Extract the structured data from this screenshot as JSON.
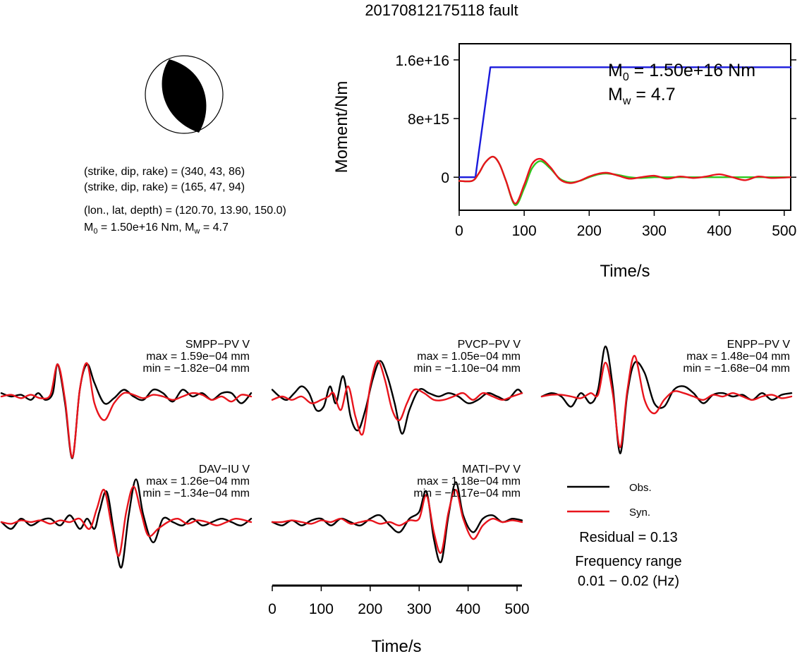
{
  "title": "20170812175118 fault",
  "mechanism": {
    "plane1": "(strike, dip, rake) = (340, 43, 86)",
    "plane2": "(strike, dip, rake) = (165, 47, 94)",
    "location": "(lon., lat, depth) = (120.70, 13.90, 150.0)",
    "moment_prefix": "M",
    "moment_sub": "0",
    "moment_suffix": " = 1.50e+16 Nm, M",
    "mw_sub": "w",
    "mw_suffix": " = 4.7"
  },
  "colors": {
    "observed": "#000000",
    "synthetic": "#e8141c",
    "moment_curve": "#1a1adc",
    "stf_green": "#2ec81e",
    "stf_olive": "#8a7030",
    "beachball": "#000000"
  },
  "legend": {
    "obs": "Obs.",
    "syn": "Syn.",
    "residual": "Residual = 0.13",
    "freq_label": "Frequency range",
    "freq_value": "0.01 − 0.02 (Hz)"
  },
  "chart_data": [
    {
      "type": "line",
      "title": "",
      "xlabel": "Time/s",
      "ylabel": "Moment/Nm",
      "xlim": [
        0,
        510
      ],
      "ylim": [
        -4500000000000000.0,
        1.82e+16
      ],
      "xticks": [
        0,
        100,
        200,
        300,
        400,
        500
      ],
      "xtick_labels": [
        "0",
        "100",
        "200",
        "300",
        "400",
        "500"
      ],
      "yticks": [
        0,
        8000000000000000.0,
        1.6e+16
      ],
      "ytick_labels": [
        "0",
        "8e+15",
        "1.6e+16"
      ],
      "annotation": {
        "m0_base": "M",
        "m0_sub": "0",
        "m0_rest": " = 1.50e+16 Nm",
        "mw_base": "M",
        "mw_sub": "w",
        "mw_rest": " = 4.7"
      },
      "series": [
        {
          "x": [
            0,
            25,
            48,
            510
          ],
          "y": [
            0,
            0,
            1.5e+16,
            1.5e+16
          ]
        },
        {
          "x": [
            0,
            20,
            30,
            40,
            52,
            62,
            72,
            86,
            100,
            112,
            125,
            140,
            155,
            170,
            185,
            200,
            215,
            228,
            245,
            262,
            280,
            300,
            320,
            340,
            360,
            380,
            400,
            420,
            440,
            460,
            480,
            510
          ],
          "y": [
            -500000000000000.0,
            -500000000000000.0,
            500000000000000.0,
            2000000000000000.0,
            2800000000000000.0,
            1800000000000000.0,
            -500000000000000.0,
            -3800000000000000.0,
            -1500000000000000.0,
            1200000000000000.0,
            2200000000000000.0,
            1200000000000000.0,
            -200000000000000.0,
            -700000000000000.0,
            -500000000000000.0,
            0.0,
            400000000000000.0,
            500000000000000.0,
            300000000000000.0,
            0.0,
            -100000000000000.0,
            0.0,
            0.0,
            0.0,
            0.0,
            0.0,
            0.0,
            0.0,
            0.0,
            0.0,
            0.0,
            0.0
          ]
        },
        {
          "x": [
            0,
            20,
            30,
            40,
            52,
            62,
            72,
            86,
            100,
            112,
            125,
            140,
            155,
            170,
            185,
            200,
            215,
            228,
            245,
            262,
            280,
            300,
            320,
            340,
            360,
            380,
            400,
            420,
            440,
            460,
            480,
            510
          ],
          "y": [
            -500000000000000.0,
            -500000000000000.0,
            500000000000000.0,
            2000000000000000.0,
            2800000000000000.0,
            1800000000000000.0,
            -500000000000000.0,
            -3600000000000000.0,
            -1000000000000000.0,
            1800000000000000.0,
            2500000000000000.0,
            1400000000000000.0,
            -300000000000000.0,
            -800000000000000.0,
            -500000000000000.0,
            100000000000000.0,
            500000000000000.0,
            600000000000000.0,
            200000000000000.0,
            -200000000000000.0,
            0.0,
            200000000000000.0,
            -200000000000000.0,
            100000000000000.0,
            -100000000000000.0,
            100000000000000.0,
            400000000000000.0,
            0.0,
            -400000000000000.0,
            100000000000000.0,
            -100000000000000.0,
            0.0
          ]
        }
      ]
    },
    {
      "type": "line",
      "xlabel": "Time/s",
      "xlim": [
        0,
        510
      ],
      "xticks": [
        0,
        100,
        200,
        300,
        400,
        500
      ],
      "xtick_labels": [
        "0",
        "100",
        "200",
        "300",
        "400",
        "500"
      ],
      "stations": [
        {
          "name": "SMPP−PV V",
          "max": "max = 1.59e−04 mm",
          "min": "min = −1.82e−04 mm",
          "obs": {
            "x": [
              0,
              20,
              40,
              60,
              75,
              90,
              105,
              115,
              130,
              145,
              160,
              175,
              190,
              210,
              230,
              250,
              270,
              290,
              310,
              330,
              350,
              370,
              390,
              410,
              430,
              450,
              470,
              490,
              510
            ],
            "y": [
              0.1,
              0,
              0.05,
              -0.1,
              0.1,
              -0.1,
              0.1,
              0.95,
              -0.2,
              -1.82,
              0.2,
              0.95,
              0.4,
              -0.2,
              -0.05,
              0.2,
              0.0,
              -0.1,
              0.2,
              0.1,
              -0.15,
              0.2,
              0.0,
              0.1,
              -0.1,
              0.1,
              0.1,
              -0.2,
              0.1
            ]
          },
          "syn": {
            "x": [
              0,
              20,
              40,
              60,
              80,
              100,
              115,
              130,
              145,
              160,
              175,
              190,
              210,
              230,
              250,
              270,
              290,
              310,
              330,
              350,
              370,
              390,
              410,
              430,
              450,
              470,
              490,
              510
            ],
            "y": [
              0,
              0.05,
              -0.05,
              0.05,
              -0.05,
              0.05,
              0.95,
              -0.1,
              -1.8,
              0.2,
              0.98,
              -0.2,
              -0.7,
              -0.2,
              0.1,
              0.05,
              -0.05,
              0.05,
              0.0,
              -0.1,
              0.0,
              0.1,
              0.05,
              -0.1,
              0.0,
              -0.15,
              0.05,
              0.0
            ]
          }
        },
        {
          "name": "PVCP−PV V",
          "max": "max = 1.05e−04 mm",
          "min": "min = −1.10e−04 mm",
          "obs": {
            "x": [
              0,
              15,
              30,
              45,
              60,
              75,
              90,
              105,
              118,
              130,
              145,
              160,
              175,
              190,
              205,
              220,
              235,
              250,
              265,
              280,
              300,
              320,
              340,
              360,
              380,
              400,
              420,
              440,
              460,
              480,
              500,
              510
            ],
            "y": [
              0.2,
              0.0,
              -0.1,
              0.1,
              0.3,
              0.1,
              -0.4,
              -0.3,
              0.3,
              -0.2,
              0.6,
              -0.6,
              -1.0,
              -0.4,
              0.5,
              1.05,
              0.6,
              -0.2,
              -1.1,
              -0.4,
              0.2,
              0.1,
              0.0,
              0.1,
              0.0,
              -0.2,
              -0.1,
              0.1,
              0.0,
              -0.1,
              0.2,
              0.1
            ]
          },
          "syn": {
            "x": [
              0,
              20,
              40,
              60,
              80,
              100,
              115,
              125,
              140,
              155,
              170,
              185,
              200,
              215,
              230,
              245,
              260,
              275,
              290,
              310,
              330,
              350,
              370,
              390,
              410,
              430,
              450,
              470,
              490,
              510
            ],
            "y": [
              -0.1,
              0.0,
              -0.1,
              0.0,
              -0.2,
              -0.1,
              0.0,
              0.1,
              -0.4,
              0.3,
              -0.6,
              -1.1,
              0.3,
              1.05,
              0.5,
              -0.4,
              -0.7,
              -0.2,
              0.2,
              0.1,
              -0.1,
              -0.1,
              0.0,
              0.1,
              -0.1,
              0.1,
              0.0,
              -0.1,
              0.0,
              0.1
            ]
          }
        },
        {
          "name": "ENPP−PV V",
          "max": "max = 1.48e−04 mm",
          "min": "min = −1.68e−04 mm",
          "obs": {
            "x": [
              0,
              20,
              40,
              60,
              80,
              100,
              115,
              130,
              145,
              160,
              175,
              190,
              210,
              230,
              250,
              270,
              290,
              310,
              330,
              350,
              370,
              390,
              410,
              430,
              450,
              470,
              490,
              510
            ],
            "y": [
              0.0,
              0.1,
              0.0,
              -0.3,
              0.1,
              -0.2,
              0.2,
              1.48,
              0.3,
              -1.68,
              0.1,
              1.0,
              0.7,
              -0.2,
              -0.3,
              0.2,
              0.3,
              0.1,
              -0.2,
              0.05,
              0.1,
              0.0,
              0.05,
              -0.1,
              0.1,
              -0.1,
              0.05,
              0.1
            ]
          },
          "syn": {
            "x": [
              0,
              20,
              40,
              60,
              80,
              100,
              115,
              130,
              145,
              160,
              175,
              190,
              210,
              230,
              250,
              270,
              290,
              310,
              330,
              350,
              370,
              390,
              410,
              430,
              450,
              470,
              490,
              510
            ],
            "y": [
              0.0,
              0.05,
              0.05,
              0.0,
              -0.05,
              0.1,
              0.05,
              1.0,
              0.1,
              -1.5,
              0.2,
              1.2,
              -0.1,
              -0.5,
              -0.1,
              0.15,
              0.1,
              0.0,
              -0.1,
              0.05,
              0.0,
              0.1,
              0.0,
              -0.1,
              0.0,
              0.05,
              -0.05,
              0.0
            ]
          }
        },
        {
          "name": "DAV−IU V",
          "max": "max = 1.26e−04 mm",
          "min": "min = −1.34e−04 mm",
          "obs": {
            "x": [
              0,
              20,
              40,
              60,
              80,
              100,
              120,
              140,
              160,
              175,
              190,
              200,
              215,
              230,
              245,
              260,
              275,
              290,
              310,
              330,
              350,
              370,
              390,
              410,
              430,
              450,
              470,
              490,
              510
            ],
            "y": [
              0.0,
              -0.2,
              0.1,
              -0.1,
              0.05,
              0.1,
              -0.1,
              0.2,
              -0.2,
              0.1,
              -0.2,
              0.3,
              0.9,
              -0.3,
              -1.34,
              0.2,
              1.26,
              0.2,
              -0.6,
              0.1,
              0.0,
              -0.1,
              0.1,
              -0.1,
              0.0,
              0.1,
              0.0,
              -0.1,
              0.1
            ]
          },
          "syn": {
            "x": [
              0,
              20,
              40,
              60,
              80,
              100,
              120,
              140,
              160,
              180,
              195,
              210,
              225,
              240,
              255,
              270,
              285,
              300,
              320,
              340,
              360,
              380,
              400,
              420,
              440,
              460,
              480,
              510
            ],
            "y": [
              0.0,
              -0.05,
              0.05,
              0.0,
              0.05,
              -0.05,
              0.05,
              0.0,
              0.1,
              -0.2,
              0.4,
              0.95,
              -0.1,
              -1.0,
              0.3,
              1.05,
              0.3,
              -0.4,
              -0.2,
              0.0,
              0.1,
              -0.05,
              0.05,
              0.0,
              -0.1,
              0.0,
              0.1,
              0.0
            ]
          }
        },
        {
          "name": "MATI−PV V",
          "max": "max = 1.18e−04 mm",
          "min": "min = −1.17e−04 mm",
          "obs": {
            "x": [
              0,
              20,
              40,
              60,
              80,
              100,
              120,
              140,
              160,
              180,
              200,
              220,
              240,
              260,
              280,
              300,
              315,
              330,
              345,
              360,
              375,
              390,
              410,
              430,
              450,
              470,
              490,
              510
            ],
            "y": [
              0.0,
              -0.1,
              0.05,
              -0.1,
              0.05,
              0.1,
              -0.1,
              0.1,
              0.0,
              -0.1,
              0.1,
              0.2,
              -0.1,
              -0.3,
              0.1,
              0.3,
              0.9,
              -0.5,
              -1.17,
              0.2,
              1.18,
              0.2,
              -0.3,
              0.1,
              0.2,
              0.0,
              0.1,
              0.05
            ]
          },
          "syn": {
            "x": [
              0,
              20,
              40,
              60,
              80,
              100,
              120,
              140,
              160,
              180,
              200,
              220,
              240,
              260,
              280,
              300,
              315,
              330,
              345,
              360,
              375,
              390,
              410,
              430,
              450,
              470,
              490,
              510
            ],
            "y": [
              0.0,
              0.0,
              0.05,
              0.0,
              -0.05,
              0.05,
              0.0,
              0.1,
              -0.05,
              0.0,
              0.05,
              -0.05,
              0.0,
              -0.1,
              0.05,
              0.1,
              0.8,
              -0.3,
              -0.9,
              0.3,
              0.95,
              0.1,
              -0.5,
              -0.1,
              0.1,
              0.0,
              0.05,
              0.0
            ]
          }
        }
      ]
    }
  ]
}
